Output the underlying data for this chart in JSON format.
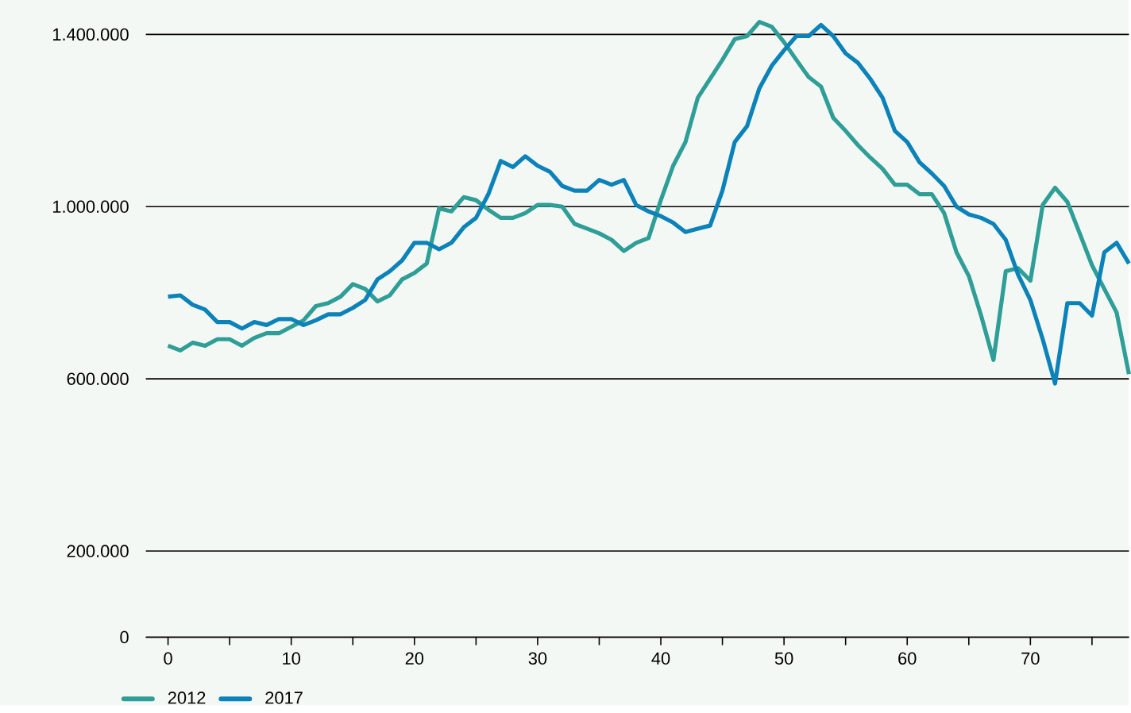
{
  "chart_data": {
    "type": "line",
    "x": [
      0,
      1,
      2,
      3,
      4,
      5,
      6,
      7,
      8,
      9,
      10,
      11,
      12,
      13,
      14,
      15,
      16,
      17,
      18,
      19,
      20,
      21,
      22,
      23,
      24,
      25,
      26,
      27,
      28,
      29,
      30,
      31,
      32,
      33,
      34,
      35,
      36,
      37,
      38,
      39,
      40,
      41,
      42,
      43,
      44,
      45,
      46,
      47,
      48,
      49,
      50,
      51,
      52,
      53,
      54,
      55,
      56,
      57,
      58,
      59,
      60,
      61,
      62,
      63,
      64,
      65,
      66,
      67,
      68,
      69,
      70,
      71,
      72,
      73,
      74,
      75,
      76,
      77,
      78
    ],
    "series": [
      {
        "name": "2012",
        "color": "#2e9e96",
        "values": [
          677000,
          666000,
          684000,
          677000,
          692000,
          692000,
          677000,
          695000,
          706000,
          706000,
          721000,
          736000,
          769000,
          776000,
          791000,
          820000,
          809000,
          780000,
          794000,
          831000,
          846000,
          868000,
          996000,
          989000,
          1022000,
          1015000,
          993000,
          974000,
          974000,
          985000,
          1004000,
          1004000,
          1000000,
          960000,
          949000,
          938000,
          923000,
          897000,
          916000,
          927000,
          1015000,
          1095000,
          1150000,
          1253000,
          1297000,
          1341000,
          1389000,
          1396000,
          1429000,
          1418000,
          1382000,
          1341000,
          1301000,
          1279000,
          1206000,
          1176000,
          1143000,
          1114000,
          1088000,
          1051000,
          1051000,
          1029000,
          1029000,
          985000,
          894000,
          839000,
          747000,
          644000,
          850000,
          857000,
          828000,
          1004000,
          1044000,
          1011000,
          938000,
          864000,
          809000,
          754000,
          611000
        ]
      },
      {
        "name": "2017",
        "color": "#0b82b8",
        "values": [
          791000,
          794000,
          772000,
          761000,
          732000,
          732000,
          717000,
          732000,
          725000,
          739000,
          739000,
          725000,
          736000,
          750000,
          750000,
          765000,
          783000,
          831000,
          850000,
          875000,
          916000,
          916000,
          901000,
          916000,
          952000,
          974000,
          1029000,
          1106000,
          1092000,
          1117000,
          1095000,
          1081000,
          1048000,
          1037000,
          1037000,
          1062000,
          1051000,
          1062000,
          1004000,
          989000,
          978000,
          963000,
          941000,
          949000,
          956000,
          1037000,
          1150000,
          1187000,
          1275000,
          1327000,
          1363000,
          1396000,
          1396000,
          1422000,
          1396000,
          1356000,
          1334000,
          1297000,
          1253000,
          1176000,
          1150000,
          1103000,
          1077000,
          1048000,
          1000000,
          982000,
          974000,
          960000,
          923000,
          842000,
          783000,
          692000,
          589000,
          776000,
          776000,
          747000,
          894000,
          916000,
          868000
        ]
      }
    ],
    "xlim": [
      -1.8,
      78
    ],
    "xticks": [
      0,
      {
        "value": 5,
        "label": null
      },
      10,
      {
        "value": 15,
        "label": null
      },
      20,
      {
        "value": 25,
        "label": null
      },
      30,
      {
        "value": 35,
        "label": null
      },
      40,
      {
        "value": 45,
        "label": null
      },
      50,
      {
        "value": 55,
        "label": null
      },
      60,
      {
        "value": 65,
        "label": null
      },
      70,
      {
        "value": 75,
        "label": null
      }
    ],
    "ylim": [
      0,
      1480000
    ],
    "yticks": [
      0,
      {
        "value": 200000,
        "label": "200.000"
      },
      {
        "value": 600000,
        "label": "600.000"
      },
      {
        "value": 1000000,
        "label": "1.000.000"
      },
      {
        "value": 1400000,
        "label": "1.400.000"
      }
    ],
    "grid": "y",
    "legend": "bottom left",
    "marker": "none",
    "line_style": "solid"
  }
}
